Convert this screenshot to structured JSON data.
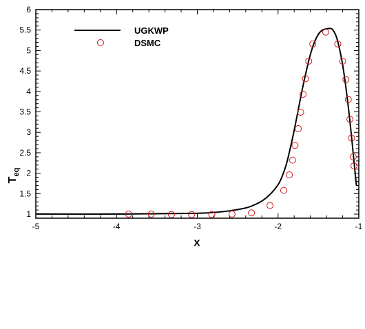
{
  "chart_data": {
    "type": "scatter",
    "xlabel": "x",
    "ylabel_main": "T",
    "ylabel_sub": "eq",
    "xlim": [
      -5,
      -1
    ],
    "ylim": [
      0.9,
      6
    ],
    "xticks": [
      -5,
      -4,
      -3,
      -2,
      -1
    ],
    "xtick_labels": [
      "-5",
      "-4",
      "-3",
      "-2",
      "-1"
    ],
    "yticks": [
      1,
      1.5,
      2,
      2.5,
      3,
      3.5,
      4,
      4.5,
      5,
      5.5,
      6
    ],
    "ytick_labels": [
      "1",
      "1.5",
      "2",
      "2.5",
      "3",
      "3.5",
      "4",
      "4.5",
      "5",
      "5.5",
      "6"
    ],
    "grid": false,
    "legend_position": "top-left",
    "series": [
      {
        "name": "UGKWP",
        "kind": "line",
        "color": "#000000",
        "x": [
          -5.0,
          -4.0,
          -3.5,
          -3.0,
          -2.8,
          -2.6,
          -2.4,
          -2.3,
          -2.2,
          -2.1,
          -2.0,
          -1.95,
          -1.9,
          -1.85,
          -1.8,
          -1.75,
          -1.7,
          -1.65,
          -1.6,
          -1.55,
          -1.5,
          -1.45,
          -1.4,
          -1.35,
          -1.32,
          -1.28,
          -1.24,
          -1.2,
          -1.16,
          -1.12,
          -1.08,
          -1.05,
          -1.03
        ],
        "y": [
          1.0,
          1.0,
          1.01,
          1.02,
          1.04,
          1.08,
          1.15,
          1.22,
          1.32,
          1.48,
          1.72,
          1.92,
          2.2,
          2.6,
          3.05,
          3.55,
          4.05,
          4.5,
          4.9,
          5.2,
          5.4,
          5.5,
          5.53,
          5.54,
          5.5,
          5.35,
          5.05,
          4.65,
          4.1,
          3.45,
          2.7,
          2.1,
          1.7
        ]
      },
      {
        "name": "DSMC",
        "kind": "markers",
        "color": "#d11a1a",
        "x": [
          -3.85,
          -3.57,
          -3.32,
          -3.07,
          -2.82,
          -2.57,
          -2.33,
          -2.1,
          -1.93,
          -1.86,
          -1.82,
          -1.79,
          -1.75,
          -1.72,
          -1.69,
          -1.66,
          -1.62,
          -1.57,
          -1.41,
          -1.26,
          -1.2,
          -1.16,
          -1.13,
          -1.11,
          -1.09,
          -1.07,
          -1.06
        ],
        "y": [
          1.0,
          1.0,
          0.99,
          0.99,
          0.99,
          1.0,
          1.03,
          1.21,
          1.58,
          1.96,
          2.32,
          2.68,
          3.09,
          3.49,
          3.93,
          4.31,
          4.74,
          5.16,
          5.45,
          5.16,
          4.74,
          4.29,
          3.8,
          3.32,
          2.86,
          2.4,
          2.18
        ]
      }
    ]
  }
}
